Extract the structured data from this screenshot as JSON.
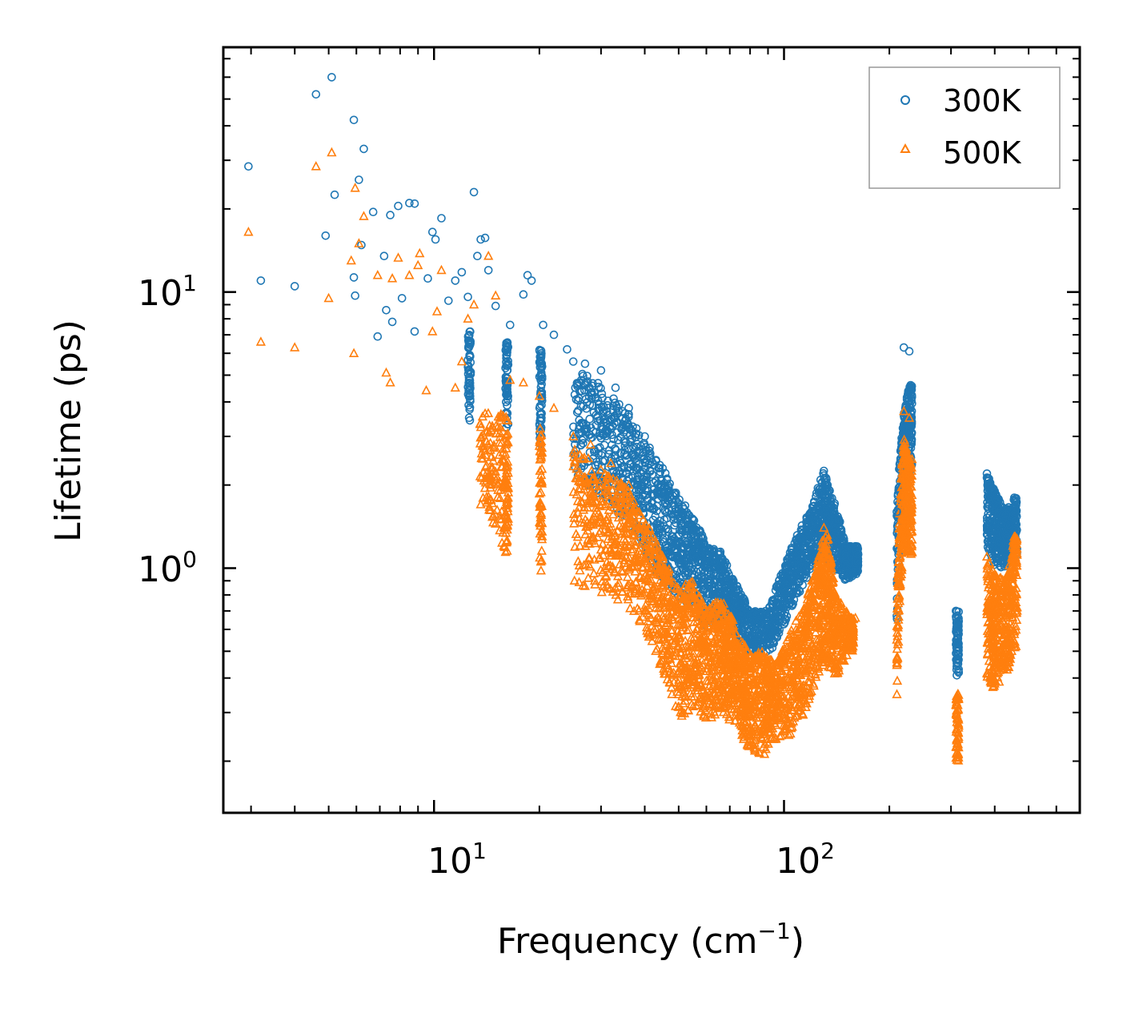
{
  "chart_data": {
    "type": "scatter",
    "xscale": "log",
    "yscale": "log",
    "xlim": [
      2.5,
      700
    ],
    "ylim": [
      0.13,
      77
    ],
    "xlabel": "Frequency (cm",
    "xlabel_exponent": "−1",
    "xlabel_suffix": ")",
    "ylabel": "Lifetime (ps)",
    "x_major_ticks": [
      {
        "value": 10,
        "base": "10",
        "exp": "1"
      },
      {
        "value": 100,
        "base": "10",
        "exp": "2"
      }
    ],
    "y_major_ticks": [
      {
        "value": 1,
        "base": "10",
        "exp": "0"
      },
      {
        "value": 10,
        "base": "10",
        "exp": "1"
      }
    ],
    "legend_position": "top-right",
    "series": [
      {
        "name": "300K",
        "marker": "circle",
        "color": "#1f77b4",
        "points": [
          [
            2.95,
            28.5
          ],
          [
            3.2,
            11.0
          ],
          [
            4.0,
            10.5
          ],
          [
            4.6,
            52
          ],
          [
            5.1,
            60
          ],
          [
            4.9,
            16.0
          ],
          [
            5.2,
            22.5
          ],
          [
            5.9,
            42
          ],
          [
            6.1,
            25.5
          ],
          [
            6.3,
            33
          ],
          [
            6.2,
            14.8
          ],
          [
            5.9,
            11.3
          ],
          [
            5.95,
            9.7
          ],
          [
            6.7,
            19.5
          ],
          [
            6.9,
            6.9
          ],
          [
            7.2,
            13.5
          ],
          [
            7.3,
            8.6
          ],
          [
            7.5,
            19.0
          ],
          [
            7.6,
            7.8
          ],
          [
            7.9,
            20.5
          ],
          [
            8.5,
            21.0
          ],
          [
            8.8,
            20.9
          ],
          [
            8.1,
            9.5
          ],
          [
            8.8,
            7.2
          ],
          [
            9.6,
            11.2
          ],
          [
            9.9,
            16.5
          ],
          [
            10.1,
            15.5
          ],
          [
            10.5,
            18.5
          ],
          [
            11.0,
            9.3
          ],
          [
            11.5,
            11.0
          ],
          [
            12.0,
            11.8
          ],
          [
            12.5,
            9.6
          ],
          [
            13.0,
            23.0
          ],
          [
            13.3,
            13.5
          ],
          [
            13.6,
            15.5
          ],
          [
            14.0,
            15.7
          ],
          [
            14.3,
            12.0
          ],
          [
            15.0,
            8.9
          ],
          [
            16.5,
            7.6
          ],
          [
            18.0,
            9.8
          ],
          [
            18.5,
            11.5
          ],
          [
            19.0,
            11.0
          ],
          [
            20.5,
            7.6
          ],
          [
            22.0,
            7.0
          ],
          [
            24.0,
            6.2
          ],
          [
            25.0,
            5.6
          ],
          [
            27.0,
            5.5
          ],
          [
            30.0,
            5.2
          ],
          [
            33.0,
            4.5
          ],
          [
            36.0,
            3.8
          ],
          [
            40.0,
            3.0
          ],
          [
            45.0,
            2.3
          ],
          [
            50.0,
            1.7
          ],
          [
            55.0,
            1.5
          ],
          [
            62.0,
            1.0
          ],
          [
            68.0,
            1.05
          ],
          [
            75.0,
            0.7
          ],
          [
            85.0,
            0.65
          ],
          [
            95.0,
            0.68
          ],
          [
            110.0,
            0.95
          ],
          [
            125.0,
            1.55
          ],
          [
            130.0,
            2.25
          ],
          [
            140.0,
            1.4
          ],
          [
            150.0,
            1.1
          ],
          [
            160.0,
            1.2
          ],
          [
            210.0,
            1.6
          ],
          [
            220.0,
            6.3
          ],
          [
            228.0,
            6.1
          ],
          [
            230.0,
            4.6
          ],
          [
            310.0,
            0.7
          ],
          [
            380.0,
            2.2
          ],
          [
            400.0,
            1.9
          ],
          [
            430.0,
            1.5
          ],
          [
            455.0,
            1.8
          ]
        ]
      },
      {
        "name": "500K",
        "marker": "triangle",
        "color": "#ff7f0e",
        "points": [
          [
            2.95,
            16.5
          ],
          [
            3.2,
            6.6
          ],
          [
            4.0,
            6.3
          ],
          [
            4.6,
            28.5
          ],
          [
            5.0,
            9.5
          ],
          [
            5.1,
            32
          ],
          [
            5.8,
            13.0
          ],
          [
            5.9,
            6.0
          ],
          [
            5.95,
            23.8
          ],
          [
            6.1,
            15.0
          ],
          [
            6.3,
            18.8
          ],
          [
            6.9,
            11.5
          ],
          [
            7.3,
            5.1
          ],
          [
            7.5,
            4.7
          ],
          [
            7.6,
            11.2
          ],
          [
            7.9,
            13.3
          ],
          [
            8.5,
            11.5
          ],
          [
            9.0,
            12.5
          ],
          [
            9.1,
            13.8
          ],
          [
            9.5,
            4.4
          ],
          [
            9.9,
            7.2
          ],
          [
            10.2,
            8.5
          ],
          [
            10.5,
            12.0
          ],
          [
            11.5,
            4.5
          ],
          [
            12.0,
            5.6
          ],
          [
            12.5,
            8.0
          ],
          [
            13.0,
            9.0
          ],
          [
            13.6,
            1.7
          ],
          [
            14.3,
            13.5
          ],
          [
            15.0,
            9.7
          ],
          [
            16.5,
            4.8
          ],
          [
            18.0,
            4.7
          ],
          [
            20.0,
            4.2
          ],
          [
            22.0,
            3.8
          ],
          [
            25.0,
            3.0
          ],
          [
            28.0,
            2.8
          ],
          [
            32.0,
            2.4
          ],
          [
            36.0,
            2.0
          ],
          [
            40.0,
            1.4
          ],
          [
            45.0,
            1.1
          ],
          [
            50.0,
            0.72
          ],
          [
            60.0,
            0.52
          ],
          [
            70.0,
            0.46
          ],
          [
            80.0,
            0.42
          ],
          [
            90.0,
            0.35
          ],
          [
            110.0,
            0.55
          ],
          [
            125.0,
            1.05
          ],
          [
            130.0,
            1.4
          ],
          [
            140.0,
            0.8
          ],
          [
            150.0,
            0.6
          ],
          [
            160.0,
            0.66
          ],
          [
            210.0,
            0.55
          ],
          [
            220.0,
            3.7
          ],
          [
            228.0,
            3.5
          ],
          [
            230.0,
            2.4
          ],
          [
            310.0,
            0.32
          ],
          [
            380.0,
            1.1
          ],
          [
            400.0,
            0.95
          ],
          [
            430.0,
            0.85
          ],
          [
            455.0,
            1.3
          ]
        ]
      }
    ],
    "clouds": [
      {
        "series": 0,
        "segments": [
          [
            12.5,
            3.4,
            7.2
          ],
          [
            16,
            3.2,
            6.6
          ],
          [
            20,
            2.8,
            6.2
          ],
          [
            25,
            2.2,
            5.4
          ],
          [
            30,
            1.8,
            4.6
          ],
          [
            35,
            1.5,
            3.9
          ],
          [
            40,
            1.1,
            2.9
          ],
          [
            45,
            0.9,
            2.3
          ],
          [
            50,
            0.78,
            1.8
          ],
          [
            55,
            0.72,
            1.55
          ],
          [
            60,
            0.6,
            1.2
          ],
          [
            66,
            0.65,
            1.15
          ],
          [
            72,
            0.55,
            0.9
          ],
          [
            80,
            0.5,
            0.7
          ],
          [
            90,
            0.48,
            0.7
          ],
          [
            100,
            0.6,
            1.0
          ],
          [
            110,
            0.8,
            1.35
          ],
          [
            120,
            1.0,
            1.65
          ],
          [
            130,
            1.1,
            2.25
          ],
          [
            138,
            1.0,
            1.8
          ],
          [
            150,
            0.9,
            1.2
          ],
          [
            160,
            0.95,
            1.2
          ],
          [
            210,
            0.6,
            1.6
          ],
          [
            220,
            2.0,
            3.6
          ],
          [
            228,
            2.2,
            4.6
          ],
          [
            310,
            0.4,
            0.7
          ],
          [
            380,
            1.2,
            2.2
          ],
          [
            400,
            1.0,
            1.9
          ],
          [
            430,
            1.0,
            1.6
          ],
          [
            455,
            1.1,
            1.8
          ]
        ]
      },
      {
        "series": 1,
        "segments": [
          [
            13.5,
            1.8,
            3.8
          ],
          [
            16,
            1.1,
            3.6
          ],
          [
            20,
            0.95,
            3.2
          ],
          [
            25,
            0.85,
            2.8
          ],
          [
            30,
            0.8,
            2.3
          ],
          [
            35,
            0.75,
            2.0
          ],
          [
            40,
            0.6,
            1.5
          ],
          [
            45,
            0.42,
            1.1
          ],
          [
            50,
            0.28,
            0.85
          ],
          [
            55,
            0.3,
            0.9
          ],
          [
            60,
            0.28,
            0.7
          ],
          [
            66,
            0.3,
            0.8
          ],
          [
            70,
            0.28,
            0.7
          ],
          [
            75,
            0.25,
            0.55
          ],
          [
            80,
            0.22,
            0.5
          ],
          [
            88,
            0.21,
            0.5
          ],
          [
            95,
            0.24,
            0.45
          ],
          [
            105,
            0.25,
            0.6
          ],
          [
            115,
            0.3,
            0.75
          ],
          [
            125,
            0.4,
            1.1
          ],
          [
            132,
            0.45,
            1.4
          ],
          [
            140,
            0.4,
            0.8
          ],
          [
            155,
            0.5,
            0.66
          ],
          [
            210,
            0.32,
            0.6
          ],
          [
            220,
            1.2,
            3.0
          ],
          [
            228,
            1.1,
            2.5
          ],
          [
            310,
            0.2,
            0.35
          ],
          [
            380,
            0.4,
            1.1
          ],
          [
            400,
            0.35,
            0.95
          ],
          [
            430,
            0.4,
            0.9
          ],
          [
            455,
            0.5,
            1.3
          ]
        ]
      }
    ]
  }
}
